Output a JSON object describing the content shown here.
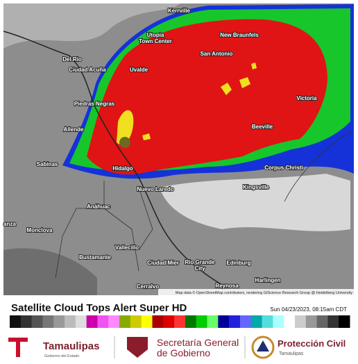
{
  "map": {
    "labels": [
      "Kerrville",
      "Utopia",
      "Town Center",
      "New Braunfels",
      "Del Rio",
      "Ciudad Acuña",
      "Uvalde",
      "San Antonio",
      "Piedras Negras",
      "Victoria",
      "Allende",
      "Beeville",
      "Sabinas",
      "Hidalgo",
      "Corpus Christi",
      "Nuevo Laredo",
      "Kingsville",
      "Anáhuac",
      "anza",
      "Monclova",
      "Vallecillo",
      "Bustamante",
      "Ciudad Mier",
      "Rio Grande",
      "City",
      "Edinburg",
      "Harlingen",
      "Cerralvo",
      "Reynosa"
    ],
    "attribution": "Map data © OpenStreetMap contributors, rendering GIScience Research Group @ Heidelberg University"
  },
  "legend": {
    "title": "Satellite Cloud Tops Alert Super HD",
    "timestamp": "Sun 04/23/2023, 08:15am CDT"
  },
  "footer": {
    "logo1": {
      "name": "Tamaulipas",
      "sub": "Gobierno del Estado"
    },
    "logo2": {
      "line1": "Secretaría General",
      "line2": "de Gobierno"
    },
    "logo3": {
      "name": "Protección Civil",
      "sub": "Tamaulipas"
    }
  }
}
